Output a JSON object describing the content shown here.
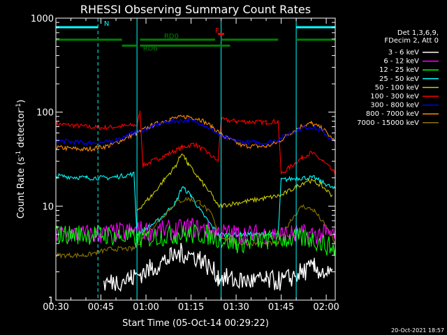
{
  "chart_data": {
    "type": "line",
    "title": "RHESSI Observing Summary Count Rates",
    "xlabel": "Start Time (05-Oct-14 00:29:22)",
    "ylabel": "Count Rate (s",
    "ylabel_sup1": "-1",
    "ylabel_mid": " detector",
    "ylabel_sup2": "-1",
    "ylabel_end": ")",
    "yscale": "log",
    "ylim": [
      1,
      1000
    ],
    "xlim_min": [
      30,
      123
    ],
    "x_ticks": [
      {
        "min": 30,
        "label": "00:30"
      },
      {
        "min": 45,
        "label": "00:45"
      },
      {
        "min": 60,
        "label": "01:00"
      },
      {
        "min": 75,
        "label": "01:15"
      },
      {
        "min": 90,
        "label": "01:30"
      },
      {
        "min": 105,
        "label": "01:45"
      },
      {
        "min": 120,
        "label": "02:00"
      }
    ],
    "y_ticks": [
      {
        "value": 1,
        "label": "1"
      },
      {
        "value": 10,
        "label": "10"
      },
      {
        "value": 100,
        "label": "100"
      },
      {
        "value": 1000,
        "label": "1000"
      }
    ],
    "legend_header": [
      "Det 1,3,6,9,",
      "FDecim 2, Att 0"
    ],
    "series": [
      {
        "name": "3 - 6 keV",
        "color": "#ffffff"
      },
      {
        "name": "6 - 12 keV",
        "color": "#ff00ff"
      },
      {
        "name": "12 - 25 keV",
        "color": "#00ff00"
      },
      {
        "name": "25 - 50 keV",
        "color": "#00ffff"
      },
      {
        "name": "50 - 100 keV",
        "color": "#cccc00"
      },
      {
        "name": "100 - 300 keV",
        "color": "#ff0000"
      },
      {
        "name": "300 - 800 keV",
        "color": "#0000ff"
      },
      {
        "name": "800 - 7000 keV",
        "color": "#ff8c00"
      },
      {
        "name": "7000 - 15000 keV",
        "color": "#8b7500"
      }
    ],
    "series_shapes": [
      {
        "name": "100 - 300 keV",
        "color": "#ff0000",
        "points": [
          [
            30,
            75
          ],
          [
            45,
            68
          ],
          [
            57,
            73
          ],
          [
            58,
            100
          ],
          [
            59,
            27
          ],
          [
            72,
            42
          ],
          [
            76,
            46
          ],
          [
            80,
            38
          ],
          [
            84,
            30
          ],
          [
            85,
            83
          ],
          [
            90,
            80
          ],
          [
            100,
            78
          ],
          [
            104,
            80
          ],
          [
            105,
            22
          ],
          [
            112,
            33
          ],
          [
            115,
            37
          ],
          [
            119,
            30
          ],
          [
            123,
            22
          ]
        ]
      },
      {
        "name": "800 - 7000 keV",
        "color": "#ff8c00",
        "points": [
          [
            30,
            42
          ],
          [
            40,
            40
          ],
          [
            48,
            44
          ],
          [
            56,
            58
          ],
          [
            62,
            72
          ],
          [
            68,
            85
          ],
          [
            74,
            90
          ],
          [
            78,
            84
          ],
          [
            82,
            70
          ],
          [
            86,
            55
          ],
          [
            92,
            44
          ],
          [
            100,
            43
          ],
          [
            104,
            48
          ],
          [
            108,
            60
          ],
          [
            112,
            72
          ],
          [
            115,
            76
          ],
          [
            119,
            66
          ],
          [
            123,
            48
          ]
        ]
      },
      {
        "name": "300 - 800 keV",
        "color": "#0000ff",
        "points": [
          [
            30,
            50
          ],
          [
            40,
            47
          ],
          [
            48,
            48
          ],
          [
            56,
            60
          ],
          [
            62,
            70
          ],
          [
            68,
            80
          ],
          [
            74,
            82
          ],
          [
            78,
            77
          ],
          [
            82,
            65
          ],
          [
            86,
            53
          ],
          [
            92,
            48
          ],
          [
            100,
            47
          ],
          [
            104,
            51
          ],
          [
            108,
            60
          ],
          [
            112,
            68
          ],
          [
            115,
            70
          ],
          [
            119,
            62
          ],
          [
            123,
            46
          ]
        ]
      },
      {
        "name": "25 - 50 keV",
        "color": "#00ffff",
        "points": [
          [
            30,
            21
          ],
          [
            40,
            20
          ],
          [
            48,
            20
          ],
          [
            56,
            22
          ],
          [
            57,
            5
          ],
          [
            64,
            7
          ],
          [
            70,
            11
          ],
          [
            72,
            16
          ],
          [
            75,
            13
          ],
          [
            78,
            9
          ],
          [
            84,
            5
          ],
          [
            90,
            5
          ],
          [
            100,
            5
          ],
          [
            104,
            5
          ],
          [
            105,
            19
          ],
          [
            112,
            20
          ],
          [
            116,
            20
          ],
          [
            120,
            17
          ],
          [
            123,
            15
          ]
        ]
      },
      {
        "name": "50 - 100 keV",
        "color": "#cccc00",
        "points": [
          [
            57,
            9
          ],
          [
            62,
            13
          ],
          [
            66,
            19
          ],
          [
            70,
            27
          ],
          [
            72,
            37
          ],
          [
            74,
            28
          ],
          [
            78,
            19
          ],
          [
            82,
            13
          ],
          [
            84,
            10
          ],
          [
            105,
            13
          ],
          [
            110,
            16
          ],
          [
            114,
            19
          ],
          [
            118,
            17
          ],
          [
            122,
            13
          ]
        ]
      },
      {
        "name": "7000 - 15000 keV",
        "color": "#8b7500",
        "points": [
          [
            30,
            3
          ],
          [
            40,
            3
          ],
          [
            48,
            3.5
          ],
          [
            56,
            3.5
          ],
          [
            60,
            5
          ],
          [
            66,
            8
          ],
          [
            70,
            11
          ],
          [
            74,
            12
          ],
          [
            78,
            11
          ],
          [
            82,
            8
          ],
          [
            84,
            5
          ],
          [
            90,
            4
          ],
          [
            100,
            4
          ],
          [
            104,
            4
          ],
          [
            108,
            7
          ],
          [
            112,
            10
          ],
          [
            116,
            9
          ],
          [
            120,
            6
          ],
          [
            123,
            4
          ]
        ]
      },
      {
        "name": "6 - 12 keV",
        "color": "#ff00ff",
        "points": [
          [
            30,
            5
          ],
          [
            45,
            5
          ],
          [
            58,
            5.5
          ],
          [
            70,
            5.5
          ],
          [
            75,
            6
          ],
          [
            80,
            5.5
          ],
          [
            90,
            5
          ],
          [
            105,
            5
          ],
          [
            115,
            5
          ],
          [
            123,
            5
          ]
        ]
      },
      {
        "name": "12 - 25 keV",
        "color": "#00ff00",
        "points": [
          [
            30,
            5
          ],
          [
            45,
            5
          ],
          [
            58,
            4.5
          ],
          [
            70,
            5
          ],
          [
            80,
            5
          ],
          [
            90,
            4
          ],
          [
            104,
            4.5
          ],
          [
            115,
            4.5
          ],
          [
            123,
            3.5
          ]
        ]
      },
      {
        "name": "3 - 6 keV",
        "color": "#ffffff",
        "points": [
          [
            46,
            1.5
          ],
          [
            55,
            1.7
          ],
          [
            62,
            2.2
          ],
          [
            68,
            2.8
          ],
          [
            72,
            3.2
          ],
          [
            78,
            2.8
          ],
          [
            84,
            1.8
          ],
          [
            90,
            1.6
          ],
          [
            100,
            1.6
          ],
          [
            106,
            1.6
          ],
          [
            112,
            2
          ],
          [
            116,
            2.2
          ],
          [
            122,
            1.8
          ]
        ]
      }
    ],
    "attenuator_bars": [
      {
        "label": "N",
        "color": "#00ffff",
        "level": 800,
        "segments": [
          [
            30,
            44
          ],
          [
            47,
            47
          ],
          [
            110,
            123
          ]
        ]
      },
      {
        "label": "RD0",
        "color": "#008000",
        "level": 590,
        "segments": [
          [
            30,
            52
          ],
          [
            58,
            83
          ],
          [
            85,
            104
          ],
          [
            110,
            123
          ]
        ]
      },
      {
        "label": "RD6",
        "color": "#008000",
        "level": 510,
        "segments": [
          [
            52,
            57
          ],
          [
            58,
            88
          ]
        ]
      },
      {
        "label": "F",
        "color": "#ff0000",
        "level": 680,
        "segments": [
          [
            84,
            86
          ]
        ]
      }
    ],
    "bar_labels": [
      {
        "text": "N",
        "min": 46,
        "value": 830,
        "color": "#00ffff"
      },
      {
        "text": "RD0",
        "min": 66,
        "value": 610,
        "color": "#008000"
      },
      {
        "text": "RD6",
        "min": 59,
        "value": 450,
        "color": "#008000"
      },
      {
        "text": "F",
        "min": 83,
        "value": 700,
        "color": "#ff0000"
      }
    ],
    "vlines_cyan": [
      30,
      57,
      85,
      110
    ],
    "vlines_cyan_dashed": [
      44,
      123
    ],
    "grid": false,
    "legend_position": "right"
  },
  "footer_date": "20-Oct-2021 18:57"
}
